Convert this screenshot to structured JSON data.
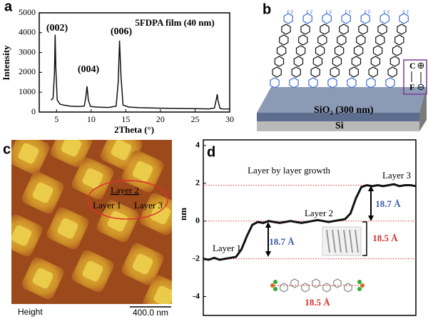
{
  "chart_data": [
    {
      "type": "line",
      "panel_label": "a",
      "title": "5FDPA film (40 nm)",
      "x_label": "2Theta (°)",
      "y_label": "Intensity",
      "x": [
        4.2,
        4.5,
        4.7,
        4.8,
        4.9,
        5.1,
        5.5,
        6,
        7,
        8,
        9,
        9.2,
        9.4,
        9.6,
        9.9,
        11,
        12.5,
        13.6,
        13.9,
        14.1,
        14.3,
        14.6,
        15.5,
        17,
        19,
        21,
        23,
        25,
        27,
        27.8,
        28.1,
        28.2,
        28.3,
        28.6,
        29,
        30
      ],
      "series": [
        {
          "color": "#111111",
          "values": [
            600,
            700,
            2000,
            3900,
            2200,
            600,
            400,
            350,
            300,
            280,
            300,
            700,
            1300,
            600,
            280,
            250,
            230,
            300,
            1500,
            3600,
            1800,
            350,
            250,
            220,
            200,
            190,
            180,
            170,
            160,
            200,
            700,
            900,
            600,
            180,
            160,
            150
          ]
        }
      ],
      "annotations": [
        "(002)",
        "(004)",
        "(006)"
      ],
      "xlim": [
        2.5,
        30
      ],
      "xticks": [
        5,
        10,
        15,
        20,
        25,
        30
      ],
      "ylim": [
        0,
        5000
      ],
      "yticks": [
        0,
        1000,
        2000,
        3000,
        4000,
        5000
      ]
    },
    {
      "type": "line",
      "panel_label": "d",
      "y_label": "nm",
      "series": [
        {
          "color": "#111111",
          "values": [
            -2,
            -2.05,
            -1.95,
            -2.05,
            -2,
            -1.95,
            -1.9,
            -1.5,
            -0.8,
            -0.2,
            -0.05,
            -0.1,
            0,
            -0.05,
            -0.1,
            -0.05,
            0,
            -0.05,
            -0.1,
            -0.05,
            0,
            0.05,
            0,
            -0.05,
            0,
            0.05,
            0.1,
            0.4,
            1.2,
            1.8,
            1.9,
            1.85,
            1.9,
            1.85,
            1.9,
            1.95,
            1.85,
            1.9,
            1.9,
            1.85
          ]
        }
      ],
      "reference_lines": {
        "color": "#e03030",
        "values": [
          1.9,
          0,
          -2
        ]
      },
      "annotations": [
        "Layer by layer growth",
        "Layer 1",
        "Layer 2",
        "Layer 3",
        "18.7 Å",
        "18.7 Å",
        "18.5 Å",
        "18.5 Å"
      ],
      "ylim": [
        -5,
        4.3
      ],
      "yticks": [
        4,
        2,
        0,
        -2,
        -4
      ]
    }
  ],
  "panel_b": {
    "label": "b",
    "substrate": "SiO₂ (300 nm)",
    "base": "Si",
    "dipole_top": "C",
    "dipole_bottom": "F",
    "plus": "⊕",
    "minus": "⊖"
  },
  "panel_c": {
    "label": "c",
    "layer2": "Layer 2",
    "layer1": "Layer 1",
    "layer3": "Layer 3",
    "scale_name": "Height",
    "scale_bar": "400.0 nm"
  }
}
